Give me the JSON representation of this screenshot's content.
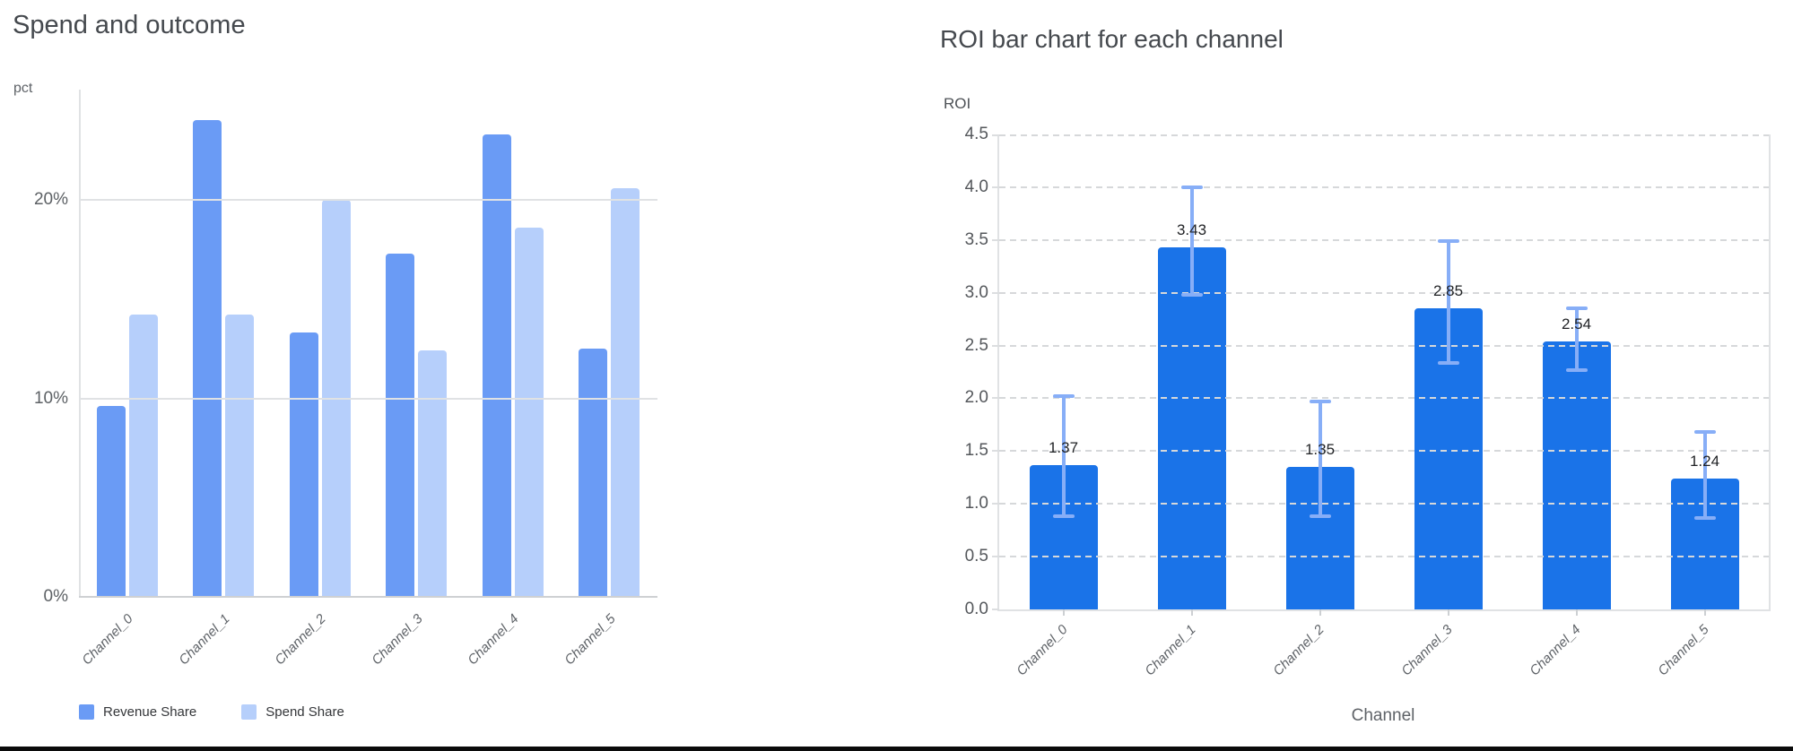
{
  "chart_data": [
    {
      "type": "bar",
      "title": "Spend and outcome",
      "ylabel": "pct",
      "xlabel": "",
      "categories": [
        "Channel_0",
        "Channel_1",
        "Channel_2",
        "Channel_3",
        "Channel_4",
        "Channel_5"
      ],
      "series": [
        {
          "name": "Revenue Share",
          "color": "#6a9bf5",
          "values": [
            9.6,
            24.0,
            13.3,
            17.3,
            23.3,
            12.5
          ]
        },
        {
          "name": "Spend Share",
          "color": "#b6cffb",
          "values": [
            14.2,
            14.2,
            20.0,
            12.4,
            18.6,
            20.6
          ]
        }
      ],
      "ytick_values": [
        0,
        10,
        20
      ],
      "ytick_labels": [
        "0%",
        "10%",
        "20%"
      ],
      "ylim": [
        0,
        25.6
      ],
      "grid": "solid",
      "legend_position": "bottom"
    },
    {
      "type": "bar",
      "title": "ROI bar chart for each channel",
      "ylabel": "ROI",
      "xlabel": "Channel",
      "categories": [
        "Channel_0",
        "Channel_1",
        "Channel_2",
        "Channel_3",
        "Channel_4",
        "Channel_5"
      ],
      "values": [
        1.37,
        3.43,
        1.35,
        2.85,
        2.54,
        1.24
      ],
      "value_labels": [
        "1.37",
        "3.43",
        "1.35",
        "2.85",
        "2.54",
        "1.24"
      ],
      "error_low": [
        0.87,
        2.96,
        0.87,
        2.32,
        2.25,
        0.85
      ],
      "error_high": [
        2.04,
        4.02,
        1.99,
        3.51,
        2.87,
        1.7
      ],
      "bar_color": "#1a73e8",
      "error_color": "#87aef7",
      "ytick_values": [
        0.0,
        0.5,
        1.0,
        1.5,
        2.0,
        2.5,
        3.0,
        3.5,
        4.0,
        4.5
      ],
      "ytick_labels": [
        "0.0",
        "0.5",
        "1.0",
        "1.5",
        "2.0",
        "2.5",
        "3.0",
        "3.5",
        "4.0",
        "4.5"
      ],
      "ylim": [
        0,
        4.5
      ],
      "grid": "dashed",
      "legend_position": "none"
    }
  ],
  "page": {
    "bottom_bar": ""
  }
}
